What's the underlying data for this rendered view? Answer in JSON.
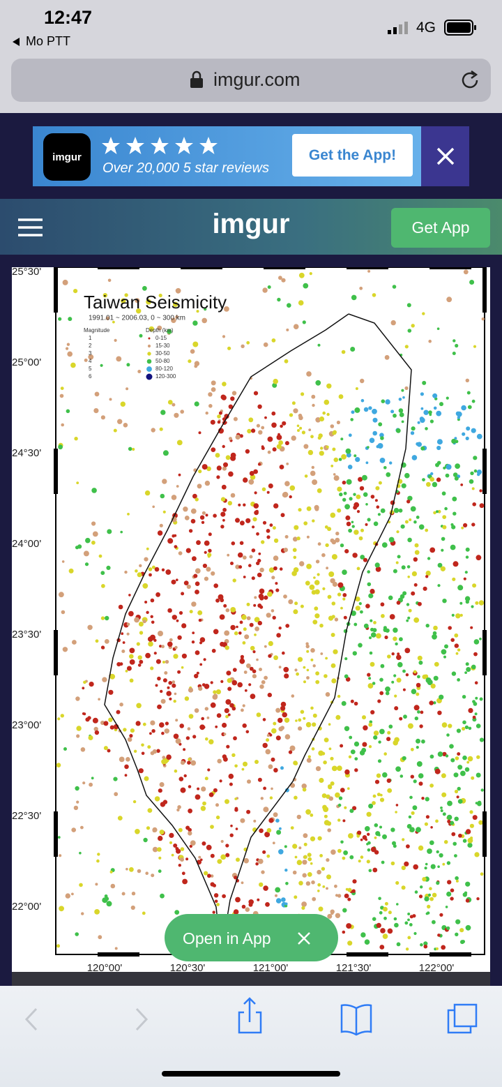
{
  "status_bar": {
    "time": "12:47",
    "back_app": "Mo PTT",
    "network": "4G"
  },
  "address_bar": {
    "url": "imgur.com"
  },
  "ad_banner": {
    "app_name": "imgur",
    "tagline": "Over 20,000 5 star reviews",
    "button": "Get the App!"
  },
  "header": {
    "logo": "imgur",
    "button": "Get App"
  },
  "image": {
    "title": "Taiwan Seismicity",
    "subtitle": "1991.01 ~ 2006.03, 0 ~ 300 km",
    "legend": {
      "magnitude_title": "Magnitude",
      "depth_title": "Depth (km)",
      "magnitudes": [
        "1",
        "2",
        "3",
        "4",
        "5",
        "6"
      ],
      "depths": [
        "0-15",
        "15-30",
        "30-50",
        "50-80",
        "80-120",
        "120-300"
      ]
    },
    "lat_labels": [
      "25°30'",
      "25°00'",
      "24°30'",
      "24°00'",
      "23°30'",
      "23°00'",
      "22°30'",
      "22°00'"
    ],
    "lon_labels": [
      "120°00'",
      "120°30'",
      "121°00'",
      "121°30'",
      "122°00'"
    ]
  },
  "open_in_app": "Open in App"
}
